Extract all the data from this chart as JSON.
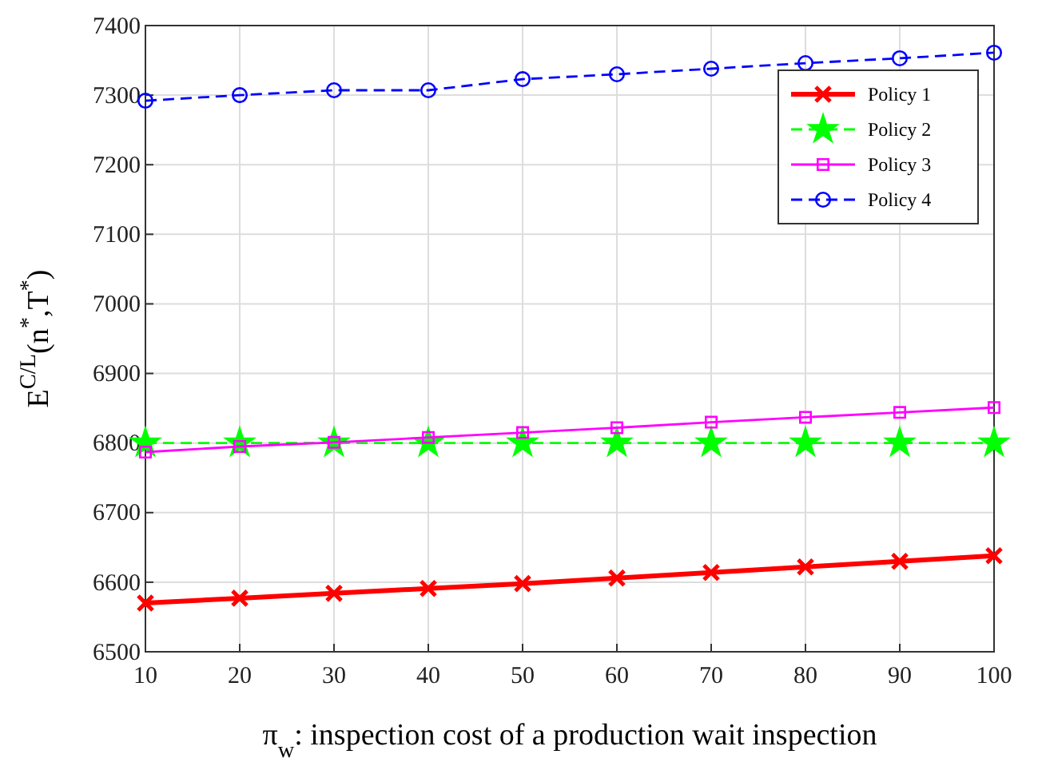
{
  "chart_data": {
    "type": "line",
    "xlabel": "π$_{w}$: inspection cost of a production wait inspection",
    "ylabel": "E$^{C/L}$(n$^{*}$,T$^{*}$)",
    "x": [
      10,
      20,
      30,
      40,
      50,
      60,
      70,
      80,
      90,
      100
    ],
    "series": [
      {
        "name": "Policy 1",
        "color": "#ff0000",
        "marker": "cross",
        "line_style": "solid",
        "values": [
          6570,
          6577,
          6584,
          6591,
          6598,
          6606,
          6614,
          6622,
          6630,
          6638
        ]
      },
      {
        "name": "Policy 2",
        "color": "#00ff00",
        "marker": "star",
        "line_style": "dashed",
        "values": [
          6800,
          6800,
          6800,
          6800,
          6800,
          6800,
          6800,
          6800,
          6800,
          6800
        ]
      },
      {
        "name": "Policy 3",
        "color": "#ff00ff",
        "marker": "square",
        "line_style": "solid",
        "values": [
          6787,
          6795,
          6801,
          6808,
          6815,
          6822,
          6830,
          6837,
          6844,
          6851
        ]
      },
      {
        "name": "Policy 4",
        "color": "#0000ff",
        "marker": "circle",
        "line_style": "dashed",
        "values": [
          7292,
          7300,
          7307,
          7307,
          7323,
          7330,
          7338,
          7346,
          7353,
          7361
        ]
      }
    ],
    "xlim": [
      10,
      100
    ],
    "xticks": [
      10,
      20,
      30,
      40,
      50,
      60,
      70,
      80,
      90,
      100
    ],
    "ylim": [
      6500,
      7400
    ],
    "yticks": [
      6500,
      6600,
      6700,
      6800,
      6900,
      7000,
      7100,
      7200,
      7300,
      7400
    ],
    "grid": true,
    "legend": "top right"
  }
}
